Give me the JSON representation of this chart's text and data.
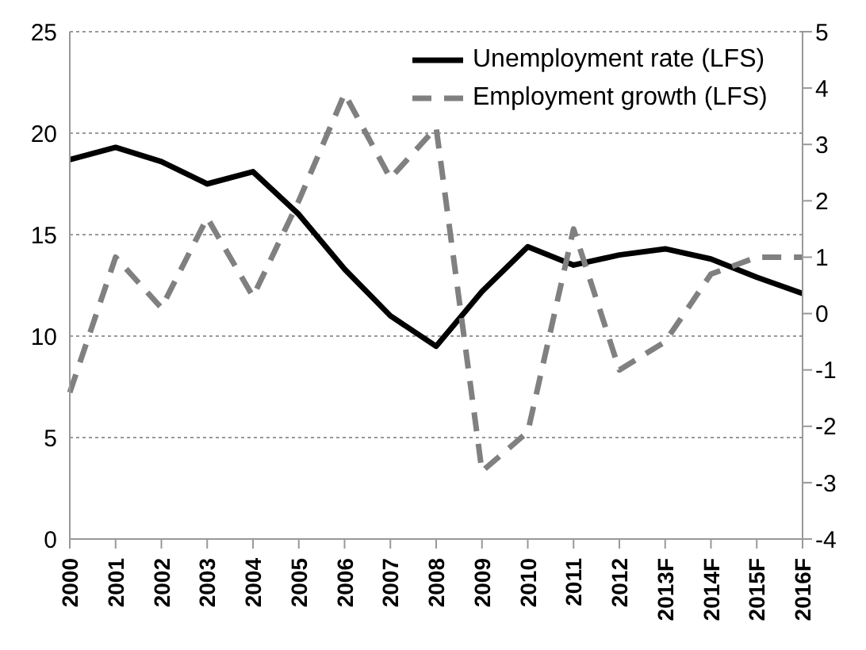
{
  "chart_data": {
    "type": "line",
    "categories": [
      "2000",
      "2001",
      "2002",
      "2003",
      "2004",
      "2005",
      "2006",
      "2007",
      "2008",
      "2009",
      "2010",
      "2011",
      "2012",
      "2013F",
      "2014F",
      "2015F",
      "2016F"
    ],
    "series": [
      {
        "name": "Unemployment rate (LFS)",
        "color": "#000000",
        "line_style": "solid",
        "values": [
          18.7,
          19.3,
          18.6,
          17.5,
          18.1,
          16.0,
          13.3,
          11.0,
          9.5,
          12.2,
          14.4,
          13.5,
          14.0,
          14.3,
          13.8,
          12.9,
          12.1
        ]
      },
      {
        "name": "Employment growth (LFS)",
        "color": "#808080",
        "line_style": "dashed",
        "axis": "y2",
        "values": [
          -1.4,
          1.0,
          0.1,
          1.7,
          0.3,
          2.0,
          3.9,
          2.4,
          3.3,
          -2.8,
          -2.1,
          1.5,
          -1.0,
          -0.5,
          0.7,
          1.0,
          1.0
        ]
      }
    ],
    "ylim": [
      0,
      25
    ],
    "yticks": [
      0,
      5,
      10,
      15,
      20,
      25
    ],
    "y2lim": [
      -4,
      5
    ],
    "y2ticks": [
      -4,
      -3,
      -2,
      -1,
      0,
      1,
      2,
      3,
      4,
      5
    ],
    "grid": "y",
    "legend": "top right",
    "marker": "none"
  }
}
